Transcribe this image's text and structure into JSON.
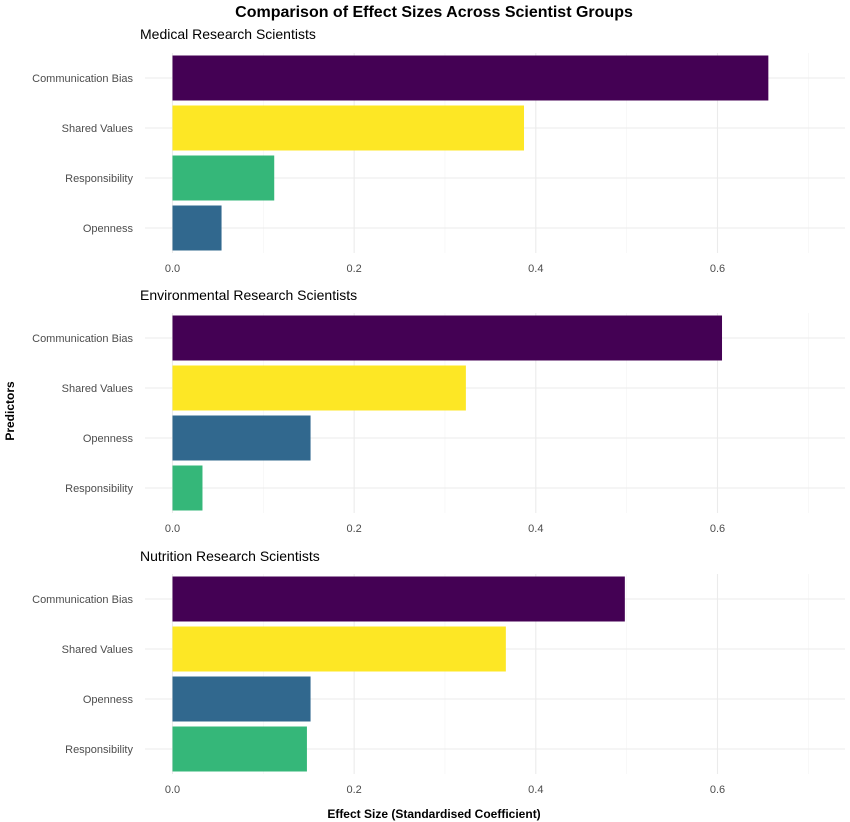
{
  "chart_data": {
    "type": "bar",
    "orientation": "horizontal",
    "title": "Comparison of Effect Sizes Across Scientist Groups",
    "xlabel": "Effect Size (Standardised Coefficient)",
    "ylabel": "Predictors",
    "xlim": [
      0,
      0.735
    ],
    "xticks": [
      "0.0",
      "0.2",
      "0.4",
      "0.6"
    ],
    "xtick_values": [
      0,
      0.2,
      0.4,
      0.6
    ],
    "grid": true,
    "legend": "none",
    "colors": {
      "Communication Bias": "#440154",
      "Shared Values": "#fde725",
      "Responsibility": "#35b779",
      "Openness": "#31688e"
    },
    "panels": [
      {
        "title": "Medical Research Scientists",
        "categories": [
          "Communication Bias",
          "Shared Values",
          "Responsibility",
          "Openness"
        ],
        "values": [
          0.656,
          0.387,
          0.112,
          0.054
        ]
      },
      {
        "title": "Environmental Research Scientists",
        "categories": [
          "Communication Bias",
          "Shared Values",
          "Openness",
          "Responsibility"
        ],
        "values": [
          0.605,
          0.323,
          0.152,
          0.033
        ]
      },
      {
        "title": "Nutrition Research Scientists",
        "categories": [
          "Communication Bias",
          "Shared Values",
          "Openness",
          "Responsibility"
        ],
        "values": [
          0.498,
          0.367,
          0.152,
          0.148
        ]
      }
    ]
  }
}
